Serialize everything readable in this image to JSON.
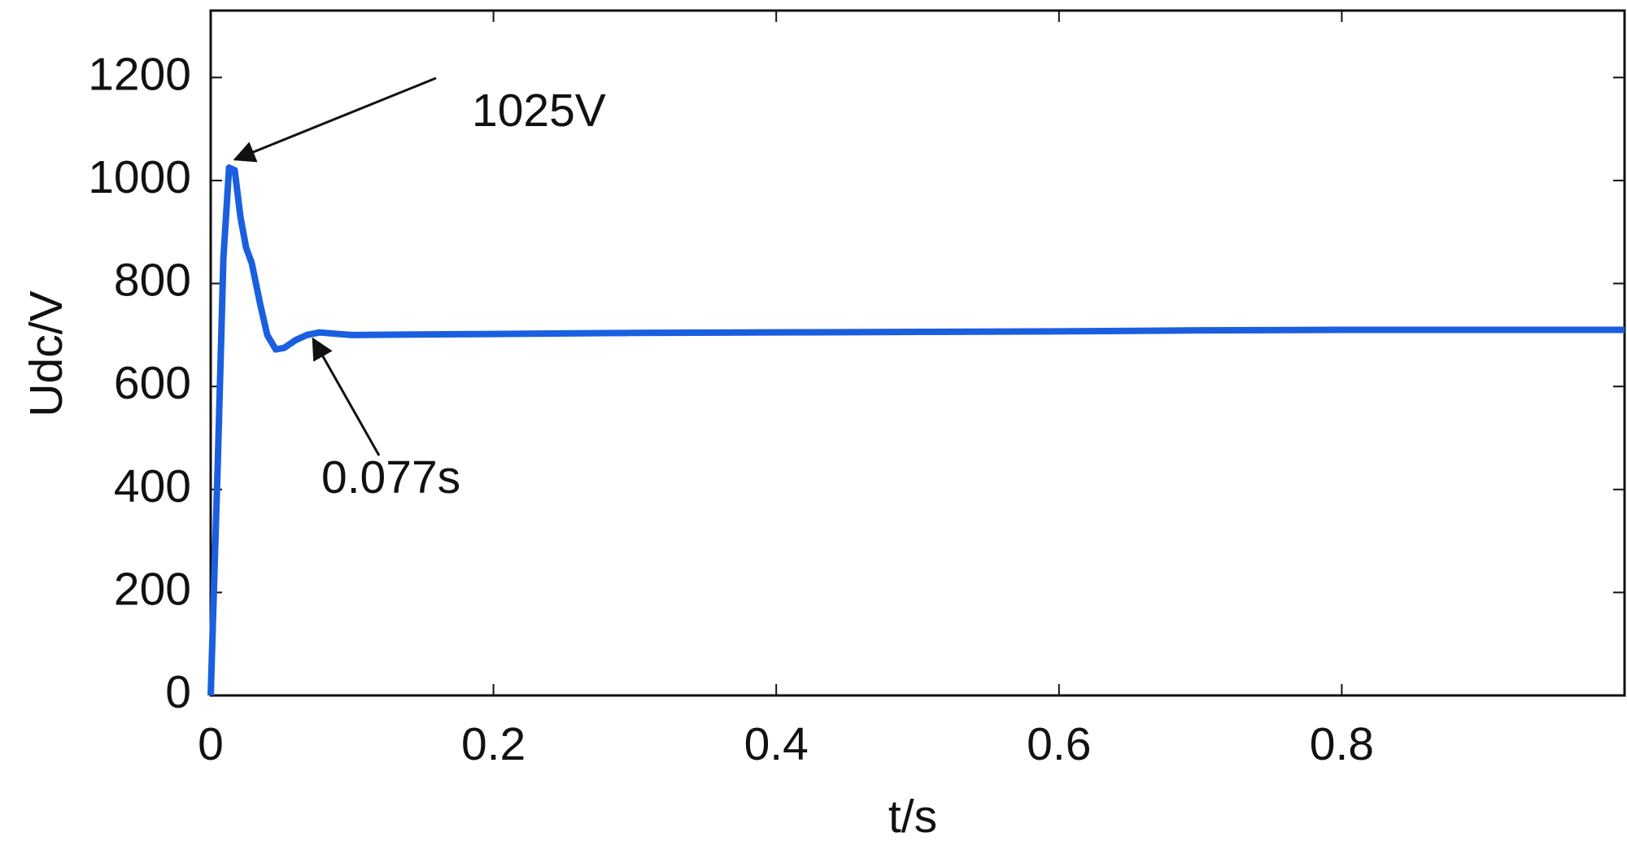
{
  "chart_data": {
    "type": "line",
    "x": [
      0,
      0.005,
      0.009,
      0.013,
      0.017,
      0.021,
      0.025,
      0.029,
      0.035,
      0.04,
      0.046,
      0.052,
      0.06,
      0.068,
      0.077,
      0.09,
      0.1,
      0.2,
      0.3,
      0.4,
      0.5,
      0.6,
      0.7,
      0.8,
      0.9,
      1.0
    ],
    "values": [
      0,
      450,
      850,
      1025,
      1020,
      930,
      870,
      840,
      760,
      700,
      672,
      675,
      690,
      700,
      705,
      702,
      700,
      702,
      704,
      705,
      706,
      707,
      709,
      710,
      710,
      710
    ],
    "color": "#1a5fe0",
    "xlabel": "t/s",
    "ylabel": "Udc/V",
    "xlim": [
      0,
      1.0
    ],
    "ylim": [
      0,
      1330
    ],
    "xticks": [
      0,
      0.2,
      0.4,
      0.6,
      0.8
    ],
    "yticks": [
      0,
      200,
      400,
      600,
      800,
      1000,
      1200
    ],
    "annotations": [
      "1025V",
      "0.077s"
    ]
  }
}
